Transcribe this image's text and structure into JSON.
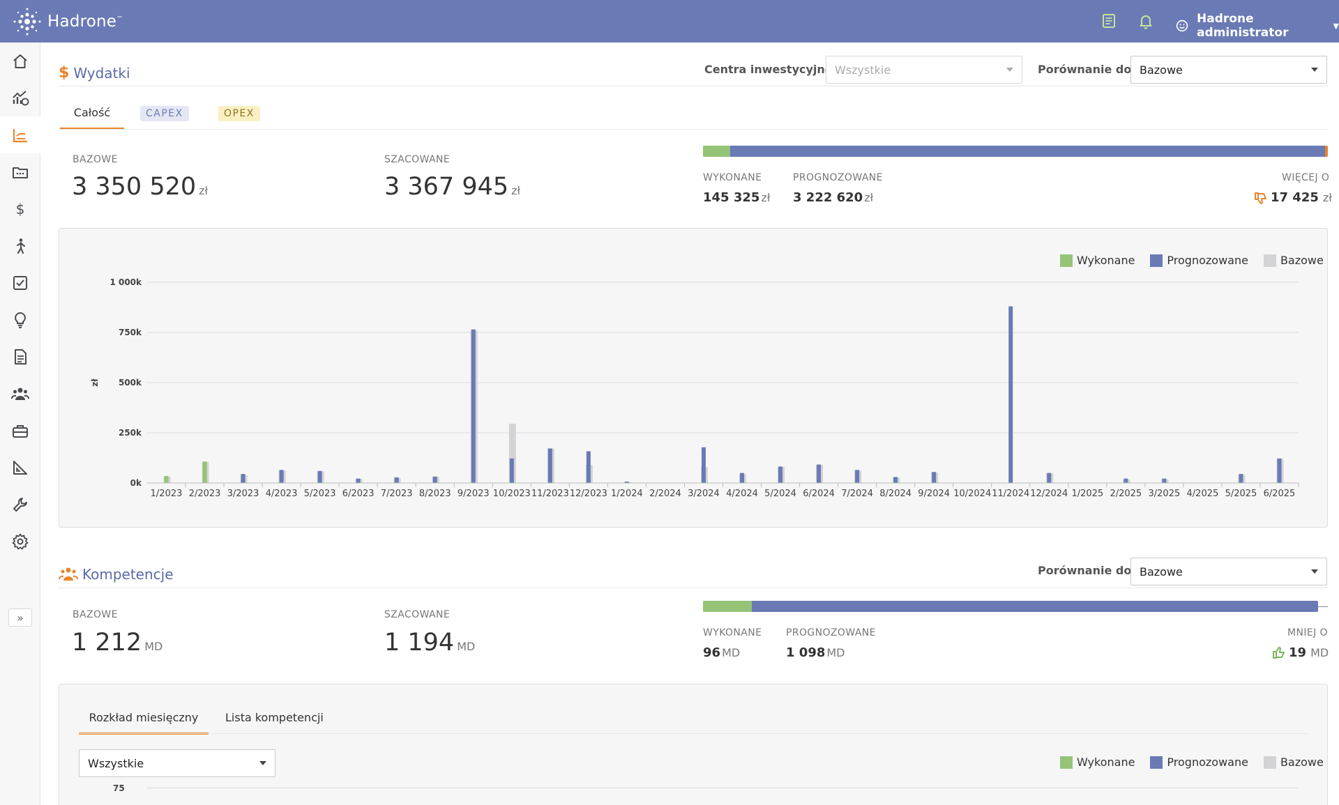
{
  "app": {
    "name": "Hadrone",
    "tm": "™"
  },
  "header": {
    "user": "Hadrone administrator"
  },
  "expenses": {
    "title": "Wydatki",
    "filter_label": "Centra inwestycyjne:",
    "filter_placeholder": "Wszystkie",
    "compare_label": "Porównanie do:",
    "compare_value": "Bazowe",
    "tabs": [
      "Całość",
      "CAPEX",
      "OPEX"
    ],
    "baseline_label": "BAZOWE",
    "baseline_value": "3 350 520",
    "estimated_label": "SZACOWANE",
    "estimated_value": "3 367 945",
    "unit": "zł",
    "done_label": "WYKONANE",
    "done_value": "145 325",
    "forecast_label": "PROGNOZOWANE",
    "forecast_value": "3 222 620",
    "diff_label": "WIĘCEJ O",
    "diff_value": "17 425",
    "progress": {
      "done_fraction": 0.043,
      "over_fraction": 0.005
    }
  },
  "competences": {
    "title": "Kompetencje",
    "compare_label": "Porównanie do:",
    "compare_value": "Bazowe",
    "baseline_label": "BAZOWE",
    "baseline_value": "1 212",
    "estimated_label": "SZACOWANE",
    "estimated_value": "1 194",
    "unit": "MD",
    "done_label": "WYKONANE",
    "done_value": "96",
    "forecast_label": "PROGNOZOWANE",
    "forecast_value": "1 098",
    "diff_label": "MNIEJ O",
    "diff_value": "19",
    "progress": {
      "done_fraction": 0.079,
      "planned_fraction": 0.985
    },
    "tabs": [
      "Rozkład miesięczny",
      "Lista kompetencji"
    ],
    "filter_value": "Wszystkie",
    "chart_first_tick": "75"
  },
  "legend": [
    "Wykonane",
    "Prognozowane",
    "Bazowe"
  ],
  "colors": {
    "done": "#95c477",
    "forecast": "#6a7ab5",
    "baseline": "#d3d3d6",
    "accent": "#e8842a",
    "header": "#6a7ab5"
  },
  "chart_data": {
    "type": "bar",
    "ylabel": "zł",
    "ylim": [
      0,
      1000000
    ],
    "yticks": [
      {
        "value": 0,
        "label": "0k"
      },
      {
        "value": 250000,
        "label": "250k"
      },
      {
        "value": 500000,
        "label": "500k"
      },
      {
        "value": 750000,
        "label": "750k"
      },
      {
        "value": 1000000,
        "label": "1 000k"
      }
    ],
    "categories": [
      "1/2023",
      "2/2023",
      "3/2023",
      "4/2023",
      "5/2023",
      "6/2023",
      "7/2023",
      "8/2023",
      "9/2023",
      "10/2023",
      "11/2023",
      "12/2023",
      "1/2024",
      "2/2024",
      "3/2024",
      "4/2024",
      "5/2024",
      "6/2024",
      "7/2024",
      "8/2024",
      "9/2024",
      "10/2024",
      "11/2024",
      "12/2024",
      "1/2025",
      "2/2025",
      "3/2025",
      "4/2025",
      "5/2025",
      "6/2025"
    ],
    "series": [
      {
        "name": "Wykonane",
        "values": [
          35000,
          107000,
          0,
          0,
          0,
          0,
          0,
          0,
          0,
          0,
          0,
          0,
          0,
          0,
          0,
          0,
          0,
          0,
          0,
          0,
          0,
          0,
          0,
          0,
          0,
          0,
          0,
          0,
          0,
          0
        ]
      },
      {
        "name": "Prognozowane",
        "values": [
          0,
          0,
          45000,
          65000,
          60000,
          22000,
          28000,
          32000,
          765000,
          122000,
          172000,
          158000,
          7000,
          0,
          178000,
          50000,
          82000,
          92000,
          65000,
          30000,
          55000,
          0,
          880000,
          50000,
          0,
          22000,
          22000,
          0,
          45000,
          122000
        ]
      },
      {
        "name": "Bazowe",
        "values": [
          32000,
          105000,
          40000,
          62000,
          58000,
          20000,
          25000,
          30000,
          760000,
          295000,
          172000,
          90000,
          5000,
          0,
          80000,
          45000,
          80000,
          90000,
          62000,
          28000,
          52000,
          0,
          0,
          48000,
          0,
          18000,
          18000,
          0,
          40000,
          120000
        ]
      }
    ]
  }
}
